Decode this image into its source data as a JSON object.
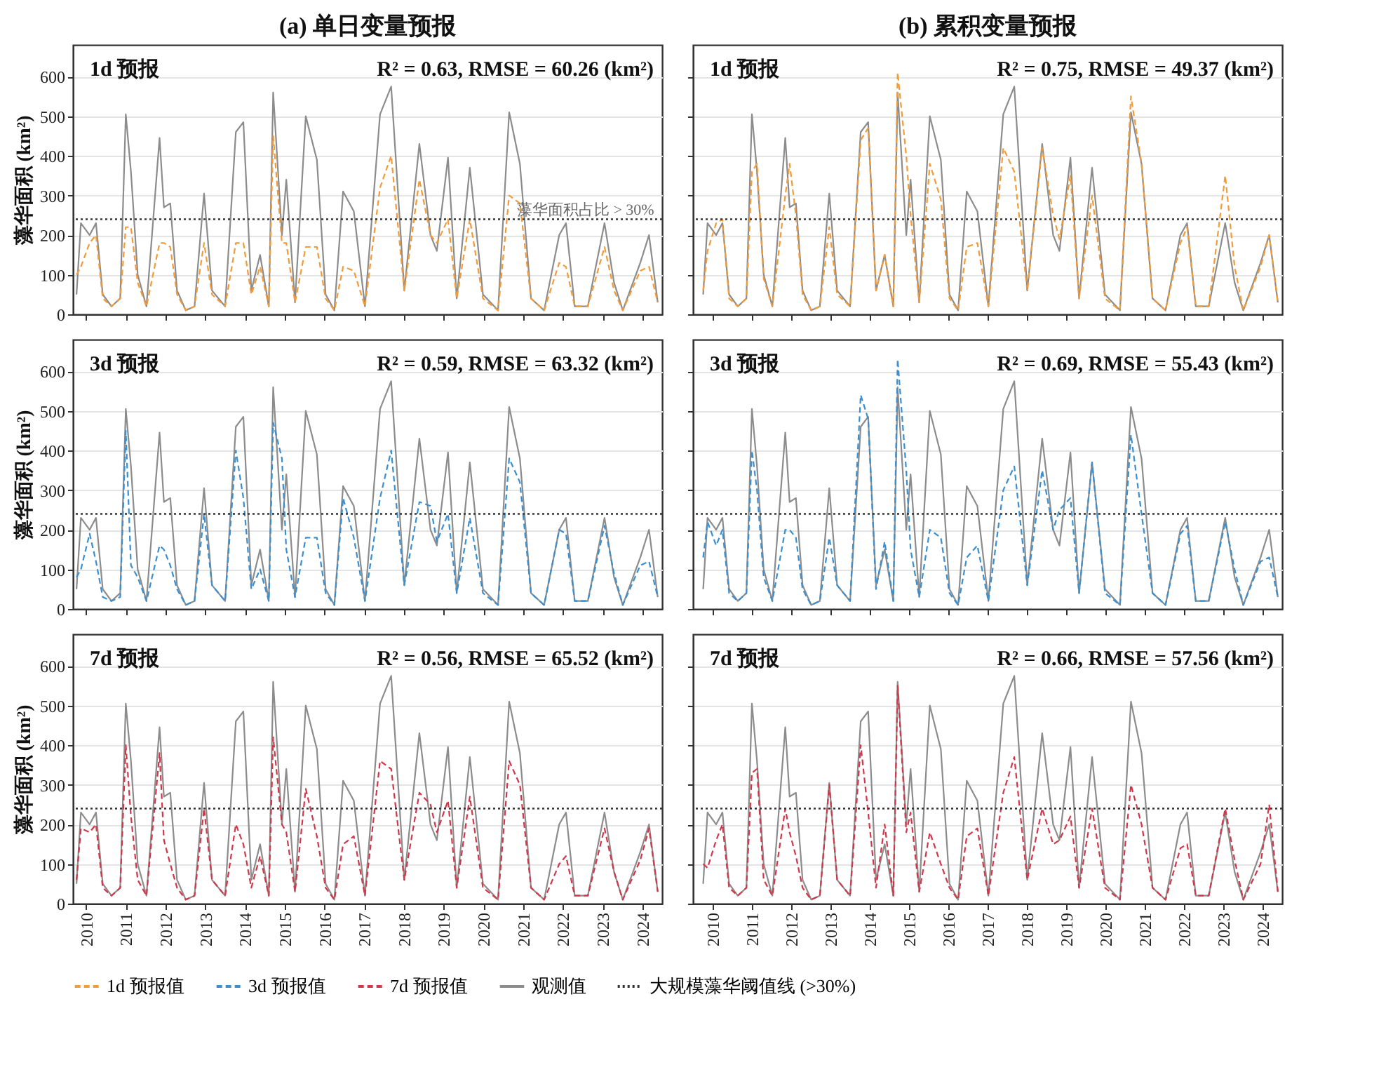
{
  "chart_data": [
    {
      "type": "line",
      "title": "(a) 单日变量预报",
      "ylabel": "藻华面积 (km²)",
      "annotations": [
        "1d 预报",
        "R² = 0.63, RMSE = 60.26 (km²)",
        {
          "text": "藻华面积占比 > 30%",
          "x": 2024.3,
          "y": 240
        }
      ],
      "xlim": [
        2009.67,
        2024.5
      ],
      "xticks": [
        2010,
        2011,
        2012,
        2013,
        2014,
        2015,
        2016,
        2017,
        2018,
        2019,
        2020,
        2021,
        2022,
        2023,
        2024
      ],
      "ylim": [
        0,
        680
      ],
      "yticks": [
        0,
        100,
        200,
        300,
        400,
        500,
        600
      ],
      "grid": "y",
      "legend": "bottom",
      "tick_labels": "y",
      "x": [
        2009.76,
        2009.87,
        2010.09,
        2010.25,
        2010.42,
        2010.64,
        2010.86,
        2011.0,
        2011.13,
        2011.3,
        2011.52,
        2011.85,
        2011.96,
        2012.12,
        2012.29,
        2012.51,
        2012.73,
        2012.97,
        2013.17,
        2013.5,
        2013.77,
        2013.96,
        2014.16,
        2014.38,
        2014.6,
        2014.71,
        2014.93,
        2015.04,
        2015.26,
        2015.53,
        2015.81,
        2016.03,
        2016.25,
        2016.47,
        2016.74,
        2017.02,
        2017.4,
        2017.68,
        2018.01,
        2018.39,
        2018.67,
        2018.83,
        2019.11,
        2019.33,
        2019.66,
        2019.99,
        2020.37,
        2020.65,
        2020.92,
        2021.2,
        2021.53,
        2021.91,
        2022.08,
        2022.3,
        2022.63,
        2023.05,
        2023.29,
        2023.51,
        2023.95,
        2024.17,
        2024.39
      ],
      "ref_lines": [
        {
          "axis": "y",
          "value": 240,
          "label": "大规模藻华阈值线 (>30%)",
          "color": "#333333",
          "line_style": "dotted"
        }
      ],
      "series": [
        {
          "name": "1d 预报值",
          "color": "#f29b38",
          "line_style": "dashed",
          "values": [
            100,
            120,
            180,
            200,
            40,
            20,
            40,
            220,
            220,
            80,
            20,
            180,
            180,
            170,
            50,
            10,
            20,
            180,
            50,
            20,
            180,
            180,
            50,
            120,
            20,
            450,
            180,
            180,
            30,
            170,
            170,
            40,
            10,
            120,
            110,
            20,
            320,
            400,
            60,
            340,
            200,
            180,
            240,
            40,
            240,
            40,
            10,
            300,
            280,
            40,
            10,
            130,
            120,
            20,
            20,
            170,
            60,
            10,
            110,
            120,
            30
          ]
        },
        {
          "name": "观测值",
          "color": "#8c8c8c",
          "line_style": "solid",
          "values": [
            50,
            230,
            200,
            230,
            50,
            20,
            40,
            505,
            360,
            100,
            20,
            445,
            270,
            280,
            60,
            10,
            20,
            305,
            60,
            20,
            460,
            485,
            60,
            150,
            20,
            560,
            200,
            340,
            30,
            500,
            390,
            50,
            10,
            310,
            260,
            20,
            505,
            575,
            60,
            430,
            200,
            160,
            395,
            40,
            370,
            50,
            10,
            510,
            380,
            40,
            10,
            200,
            230,
            20,
            20,
            230,
            80,
            10,
            130,
            200,
            30
          ]
        }
      ]
    },
    {
      "type": "line",
      "title": "(b) 累积变量预报",
      "annotations": [
        "1d 预报",
        "R² = 0.75, RMSE = 49.37 (km²)"
      ],
      "xlim": [
        2009.5,
        2024.5
      ],
      "xticks": [
        2010,
        2011,
        2012,
        2013,
        2014,
        2015,
        2016,
        2017,
        2018,
        2019,
        2020,
        2021,
        2022,
        2023,
        2024
      ],
      "ylim": [
        0,
        680
      ],
      "yticks": [
        0,
        100,
        200,
        300,
        400,
        500,
        600
      ],
      "grid": "y",
      "legend": "bottom",
      "tick_labels": false,
      "x": [
        2009.76,
        2009.87,
        2010.09,
        2010.25,
        2010.42,
        2010.64,
        2010.86,
        2011.0,
        2011.13,
        2011.3,
        2011.52,
        2011.85,
        2011.96,
        2012.12,
        2012.29,
        2012.51,
        2012.73,
        2012.97,
        2013.17,
        2013.5,
        2013.77,
        2013.96,
        2014.16,
        2014.38,
        2014.6,
        2014.71,
        2014.93,
        2015.04,
        2015.26,
        2015.53,
        2015.81,
        2016.03,
        2016.25,
        2016.47,
        2016.74,
        2017.02,
        2017.4,
        2017.68,
        2018.01,
        2018.39,
        2018.67,
        2018.83,
        2019.11,
        2019.33,
        2019.66,
        2019.99,
        2020.37,
        2020.65,
        2020.92,
        2021.2,
        2021.53,
        2021.91,
        2022.08,
        2022.3,
        2022.63,
        2023.05,
        2023.29,
        2023.51,
        2023.95,
        2024.17,
        2024.39
      ],
      "ref_lines": [
        {
          "axis": "y",
          "value": 240,
          "color": "#333333",
          "line_style": "dotted"
        }
      ],
      "series": [
        {
          "name": "1d 预报值",
          "color": "#f29b38",
          "line_style": "dashed",
          "values": [
            60,
            160,
            230,
            240,
            40,
            20,
            40,
            360,
            380,
            90,
            20,
            300,
            380,
            250,
            50,
            10,
            20,
            220,
            50,
            20,
            440,
            470,
            60,
            150,
            20,
            610,
            400,
            250,
            30,
            380,
            290,
            40,
            10,
            170,
            180,
            20,
            420,
            360,
            60,
            420,
            250,
            190,
            350,
            40,
            300,
            40,
            10,
            550,
            380,
            40,
            10,
            180,
            220,
            20,
            20,
            350,
            120,
            10,
            120,
            200,
            30
          ]
        },
        {
          "name": "观测值",
          "color": "#8c8c8c",
          "line_style": "solid",
          "values": [
            50,
            230,
            200,
            230,
            50,
            20,
            40,
            505,
            360,
            100,
            20,
            445,
            270,
            280,
            60,
            10,
            20,
            305,
            60,
            20,
            460,
            485,
            60,
            150,
            20,
            560,
            200,
            340,
            30,
            500,
            390,
            50,
            10,
            310,
            260,
            20,
            505,
            575,
            60,
            430,
            200,
            160,
            395,
            40,
            370,
            50,
            10,
            510,
            380,
            40,
            10,
            200,
            230,
            20,
            20,
            230,
            80,
            10,
            130,
            200,
            30
          ]
        }
      ]
    },
    {
      "type": "line",
      "ylabel": "藻华面积 (km²)",
      "annotations": [
        "3d 预报",
        "R² = 0.59, RMSE = 63.32 (km²)"
      ],
      "xlim": [
        2009.67,
        2024.5
      ],
      "xticks": [
        2010,
        2011,
        2012,
        2013,
        2014,
        2015,
        2016,
        2017,
        2018,
        2019,
        2020,
        2021,
        2022,
        2023,
        2024
      ],
      "ylim": [
        0,
        680
      ],
      "yticks": [
        0,
        100,
        200,
        300,
        400,
        500,
        600
      ],
      "grid": "y",
      "legend": "bottom",
      "tick_labels": "y",
      "x": [
        2009.76,
        2009.87,
        2010.09,
        2010.25,
        2010.42,
        2010.64,
        2010.86,
        2011.0,
        2011.13,
        2011.3,
        2011.52,
        2011.85,
        2011.96,
        2012.12,
        2012.29,
        2012.51,
        2012.73,
        2012.97,
        2013.17,
        2013.5,
        2013.77,
        2013.96,
        2014.16,
        2014.38,
        2014.6,
        2014.71,
        2014.93,
        2015.04,
        2015.26,
        2015.53,
        2015.81,
        2016.03,
        2016.25,
        2016.47,
        2016.74,
        2017.02,
        2017.4,
        2017.68,
        2018.01,
        2018.39,
        2018.67,
        2018.83,
        2019.11,
        2019.33,
        2019.66,
        2019.99,
        2020.37,
        2020.65,
        2020.92,
        2021.2,
        2021.53,
        2021.91,
        2022.08,
        2022.3,
        2022.63,
        2023.05,
        2023.29,
        2023.51,
        2023.95,
        2024.17,
        2024.39
      ],
      "ref_lines": [
        {
          "axis": "y",
          "value": 240,
          "color": "#333333",
          "line_style": "dotted"
        }
      ],
      "series": [
        {
          "name": "3d 预报值",
          "color": "#3a8fd0",
          "line_style": "dashed",
          "values": [
            80,
            100,
            190,
            120,
            30,
            20,
            30,
            450,
            110,
            80,
            20,
            160,
            150,
            110,
            50,
            10,
            20,
            240,
            60,
            20,
            400,
            280,
            50,
            100,
            20,
            470,
            380,
            150,
            30,
            180,
            180,
            40,
            10,
            280,
            180,
            20,
            280,
            400,
            60,
            270,
            260,
            170,
            240,
            40,
            230,
            40,
            10,
            380,
            320,
            40,
            10,
            200,
            190,
            20,
            20,
            210,
            90,
            10,
            110,
            120,
            30
          ]
        },
        {
          "name": "观测值",
          "color": "#8c8c8c",
          "line_style": "solid",
          "values": [
            50,
            230,
            200,
            230,
            50,
            20,
            40,
            505,
            360,
            100,
            20,
            445,
            270,
            280,
            60,
            10,
            20,
            305,
            60,
            20,
            460,
            485,
            60,
            150,
            20,
            560,
            200,
            340,
            30,
            500,
            390,
            50,
            10,
            310,
            260,
            20,
            505,
            575,
            60,
            430,
            200,
            160,
            395,
            40,
            370,
            50,
            10,
            510,
            380,
            40,
            10,
            200,
            230,
            20,
            20,
            230,
            80,
            10,
            130,
            200,
            30
          ]
        }
      ]
    },
    {
      "type": "line",
      "annotations": [
        "3d 预报",
        "R² = 0.69, RMSE = 55.43 (km²)"
      ],
      "xlim": [
        2009.5,
        2024.5
      ],
      "xticks": [
        2010,
        2011,
        2012,
        2013,
        2014,
        2015,
        2016,
        2017,
        2018,
        2019,
        2020,
        2021,
        2022,
        2023,
        2024
      ],
      "ylim": [
        0,
        680
      ],
      "yticks": [
        0,
        100,
        200,
        300,
        400,
        500,
        600
      ],
      "grid": "y",
      "legend": "bottom",
      "tick_labels": false,
      "x": [
        2009.76,
        2009.87,
        2010.09,
        2010.25,
        2010.42,
        2010.64,
        2010.86,
        2011.0,
        2011.13,
        2011.3,
        2011.52,
        2011.85,
        2011.96,
        2012.12,
        2012.29,
        2012.51,
        2012.73,
        2012.97,
        2013.17,
        2013.5,
        2013.77,
        2013.96,
        2014.16,
        2014.38,
        2014.6,
        2014.71,
        2014.93,
        2015.04,
        2015.26,
        2015.53,
        2015.81,
        2016.03,
        2016.25,
        2016.47,
        2016.74,
        2017.02,
        2017.4,
        2017.68,
        2018.01,
        2018.39,
        2018.67,
        2018.83,
        2019.11,
        2019.33,
        2019.66,
        2019.99,
        2020.37,
        2020.65,
        2020.92,
        2021.2,
        2021.53,
        2021.91,
        2022.08,
        2022.3,
        2022.63,
        2023.05,
        2023.29,
        2023.51,
        2023.95,
        2024.17,
        2024.39
      ],
      "ref_lines": [
        {
          "axis": "y",
          "value": 240,
          "color": "#333333",
          "line_style": "dotted"
        }
      ],
      "series": [
        {
          "name": "3d 预报值",
          "color": "#3a8fd0",
          "line_style": "dashed",
          "values": [
            130,
            220,
            160,
            200,
            40,
            20,
            40,
            400,
            300,
            80,
            20,
            200,
            200,
            180,
            50,
            10,
            20,
            180,
            60,
            20,
            540,
            480,
            50,
            170,
            20,
            630,
            350,
            150,
            30,
            200,
            180,
            40,
            10,
            130,
            160,
            20,
            300,
            360,
            60,
            350,
            200,
            250,
            280,
            40,
            370,
            40,
            10,
            440,
            240,
            40,
            10,
            190,
            210,
            20,
            20,
            220,
            100,
            10,
            120,
            130,
            30
          ]
        },
        {
          "name": "观测值",
          "color": "#8c8c8c",
          "line_style": "solid",
          "values": [
            50,
            230,
            200,
            230,
            50,
            20,
            40,
            505,
            360,
            100,
            20,
            445,
            270,
            280,
            60,
            10,
            20,
            305,
            60,
            20,
            460,
            485,
            60,
            150,
            20,
            560,
            200,
            340,
            30,
            500,
            390,
            50,
            10,
            310,
            260,
            20,
            505,
            575,
            60,
            430,
            200,
            160,
            395,
            40,
            370,
            50,
            10,
            510,
            380,
            40,
            10,
            200,
            230,
            20,
            20,
            230,
            80,
            10,
            130,
            200,
            30
          ]
        }
      ]
    },
    {
      "type": "line",
      "ylabel": "藻华面积 (km²)",
      "annotations": [
        "7d 预报",
        "R² = 0.56, RMSE = 65.52 (km²)"
      ],
      "xlim": [
        2009.67,
        2024.5
      ],
      "xticks": [
        2010,
        2011,
        2012,
        2013,
        2014,
        2015,
        2016,
        2017,
        2018,
        2019,
        2020,
        2021,
        2022,
        2023,
        2024
      ],
      "ylim": [
        0,
        680
      ],
      "yticks": [
        0,
        100,
        200,
        300,
        400,
        500,
        600
      ],
      "grid": "y",
      "legend": "bottom",
      "x": [
        2009.76,
        2009.87,
        2010.09,
        2010.25,
        2010.42,
        2010.64,
        2010.86,
        2011.0,
        2011.13,
        2011.3,
        2011.52,
        2011.85,
        2011.96,
        2012.12,
        2012.29,
        2012.51,
        2012.73,
        2012.97,
        2013.17,
        2013.5,
        2013.77,
        2013.96,
        2014.16,
        2014.38,
        2014.6,
        2014.71,
        2014.93,
        2015.04,
        2015.26,
        2015.53,
        2015.81,
        2016.03,
        2016.25,
        2016.47,
        2016.74,
        2017.02,
        2017.4,
        2017.68,
        2018.01,
        2018.39,
        2018.67,
        2018.83,
        2019.11,
        2019.33,
        2019.66,
        2019.99,
        2020.37,
        2020.65,
        2020.92,
        2021.2,
        2021.53,
        2021.91,
        2022.08,
        2022.3,
        2022.63,
        2023.05,
        2023.29,
        2023.51,
        2023.95,
        2024.17,
        2024.39
      ],
      "ref_lines": [
        {
          "axis": "y",
          "value": 240,
          "color": "#333333",
          "line_style": "dotted"
        }
      ],
      "series": [
        {
          "name": "7d 预报值",
          "color": "#d0384a",
          "line_style": "dashed",
          "values": [
            60,
            190,
            180,
            200,
            40,
            20,
            40,
            400,
            220,
            60,
            20,
            380,
            160,
            100,
            40,
            10,
            20,
            240,
            60,
            20,
            200,
            150,
            40,
            120,
            20,
            420,
            200,
            180,
            30,
            290,
            170,
            40,
            10,
            150,
            170,
            20,
            360,
            340,
            60,
            280,
            250,
            180,
            260,
            40,
            270,
            40,
            10,
            360,
            300,
            40,
            10,
            100,
            120,
            20,
            20,
            190,
            80,
            10,
            110,
            190,
            30
          ]
        },
        {
          "name": "观测值",
          "color": "#8c8c8c",
          "line_style": "solid",
          "values": [
            50,
            230,
            200,
            230,
            50,
            20,
            40,
            505,
            360,
            100,
            20,
            445,
            270,
            280,
            60,
            10,
            20,
            305,
            60,
            20,
            460,
            485,
            60,
            150,
            20,
            560,
            200,
            340,
            30,
            500,
            390,
            50,
            10,
            310,
            260,
            20,
            505,
            575,
            60,
            430,
            200,
            160,
            395,
            40,
            370,
            50,
            10,
            510,
            380,
            40,
            10,
            200,
            230,
            20,
            20,
            230,
            80,
            10,
            130,
            200,
            30
          ]
        }
      ]
    },
    {
      "type": "line",
      "annotations": [
        "7d 预报",
        "R² = 0.66, RMSE = 57.56 (km²)"
      ],
      "xlim": [
        2009.5,
        2024.5
      ],
      "xticks": [
        2010,
        2011,
        2012,
        2013,
        2014,
        2015,
        2016,
        2017,
        2018,
        2019,
        2020,
        2021,
        2022,
        2023,
        2024
      ],
      "ylim": [
        0,
        680
      ],
      "yticks": [
        0,
        100,
        200,
        300,
        400,
        500,
        600
      ],
      "grid": "y",
      "legend": "bottom",
      "tick_labels": "x",
      "x": [
        2009.76,
        2009.87,
        2010.09,
        2010.25,
        2010.42,
        2010.64,
        2010.86,
        2011.0,
        2011.13,
        2011.3,
        2011.52,
        2011.85,
        2011.96,
        2012.12,
        2012.29,
        2012.51,
        2012.73,
        2012.97,
        2013.17,
        2013.5,
        2013.77,
        2013.96,
        2014.16,
        2014.38,
        2014.6,
        2014.71,
        2014.93,
        2015.04,
        2015.26,
        2015.53,
        2015.81,
        2016.03,
        2016.25,
        2016.47,
        2016.74,
        2017.02,
        2017.4,
        2017.68,
        2018.01,
        2018.39,
        2018.67,
        2018.83,
        2019.11,
        2019.33,
        2019.66,
        2019.99,
        2020.37,
        2020.65,
        2020.92,
        2021.2,
        2021.53,
        2021.91,
        2022.08,
        2022.3,
        2022.63,
        2023.05,
        2023.29,
        2023.51,
        2023.95,
        2024.17,
        2024.39
      ],
      "ref_lines": [
        {
          "axis": "y",
          "value": 240,
          "color": "#333333",
          "line_style": "dotted"
        }
      ],
      "series": [
        {
          "name": "7d 预报值",
          "color": "#d0384a",
          "line_style": "dashed",
          "values": [
            100,
            90,
            160,
            200,
            40,
            20,
            40,
            330,
            340,
            60,
            20,
            240,
            180,
            120,
            40,
            10,
            20,
            300,
            60,
            20,
            400,
            230,
            40,
            200,
            20,
            550,
            180,
            230,
            30,
            180,
            100,
            40,
            10,
            170,
            190,
            20,
            280,
            370,
            60,
            240,
            150,
            160,
            220,
            40,
            240,
            40,
            10,
            300,
            200,
            40,
            10,
            140,
            150,
            20,
            20,
            240,
            110,
            10,
            100,
            250,
            30
          ]
        },
        {
          "name": "观测值",
          "color": "#8c8c8c",
          "line_style": "solid",
          "values": [
            50,
            230,
            200,
            230,
            50,
            20,
            40,
            505,
            360,
            100,
            20,
            445,
            270,
            280,
            60,
            10,
            20,
            305,
            60,
            20,
            460,
            485,
            60,
            150,
            20,
            560,
            200,
            340,
            30,
            500,
            390,
            50,
            10,
            310,
            260,
            20,
            505,
            575,
            60,
            430,
            200,
            160,
            395,
            40,
            370,
            50,
            10,
            510,
            380,
            40,
            10,
            200,
            230,
            20,
            20,
            230,
            80,
            10,
            130,
            200,
            30
          ]
        }
      ]
    }
  ]
}
